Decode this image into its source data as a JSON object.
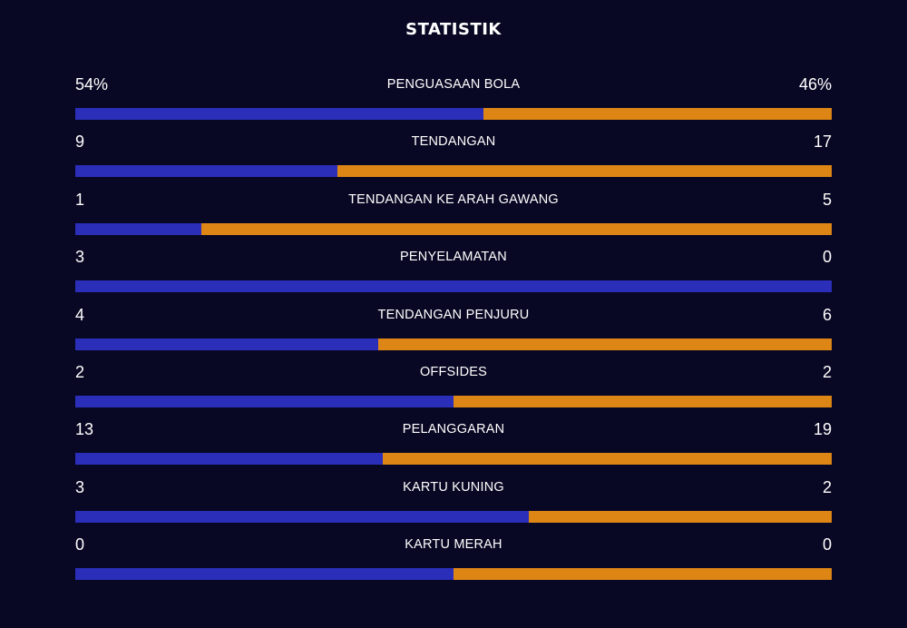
{
  "title": "STATISTIK",
  "colors": {
    "background": "#080824",
    "home": "#2a2eb8",
    "away": "#dd8615",
    "text": "#ffffff"
  },
  "stats": [
    {
      "label": "PENGUASAAN BOLA",
      "home": "54%",
      "away": "46%",
      "home_share": 0.54
    },
    {
      "label": "TENDANGAN",
      "home": "9",
      "away": "17",
      "home_share": 0.3462
    },
    {
      "label": "TENDANGAN KE ARAH GAWANG",
      "home": "1",
      "away": "5",
      "home_share": 0.1667
    },
    {
      "label": "PENYELAMATAN",
      "home": "3",
      "away": "0",
      "home_share": 1.0
    },
    {
      "label": "TENDANGAN PENJURU",
      "home": "4",
      "away": "6",
      "home_share": 0.4
    },
    {
      "label": "OFFSIDES",
      "home": "2",
      "away": "2",
      "home_share": 0.5
    },
    {
      "label": "PELANGGARAN",
      "home": "13",
      "away": "19",
      "home_share": 0.4063
    },
    {
      "label": "KARTU KUNING",
      "home": "3",
      "away": "2",
      "home_share": 0.6
    },
    {
      "label": "KARTU MERAH",
      "home": "0",
      "away": "0",
      "home_share": 0.5
    }
  ]
}
